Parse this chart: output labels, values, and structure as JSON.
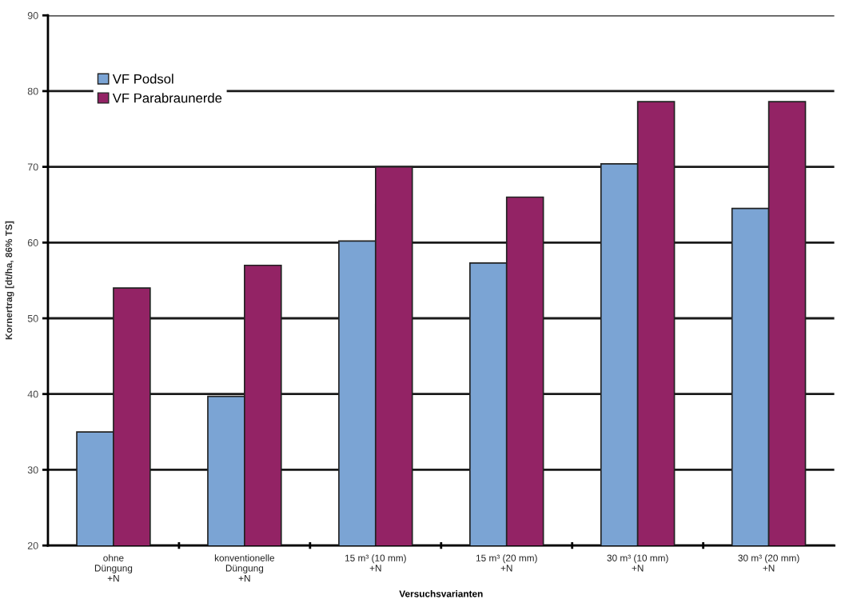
{
  "chart_data": {
    "type": "bar",
    "xlabel": "Versuchsvarianten",
    "ylabel": "Kornertrag [dt/ha, 86% TS]",
    "categories": [
      "ohne\nDüngung\n+N",
      "konventionelle\nDüngung\n+N",
      "15 m³ (10 mm)\n+N",
      "15 m³ (20 mm)\n+N",
      "30 m³ (10 mm)\n+N",
      "30 m³ (20 mm)\n+N"
    ],
    "series": [
      {
        "name": "VF Podsol",
        "color": "#7ba4d4",
        "values": [
          35,
          39.7,
          60.2,
          57.3,
          70.4,
          64.5
        ]
      },
      {
        "name": "VF Parabraunerde",
        "color": "#932365",
        "values": [
          54,
          57,
          70,
          66,
          78.6,
          78.6
        ]
      }
    ],
    "ylim": [
      20,
      90
    ],
    "yticks": [
      20,
      30,
      40,
      50,
      60,
      70,
      80,
      90
    ],
    "grid": "y",
    "legend": "top left"
  }
}
